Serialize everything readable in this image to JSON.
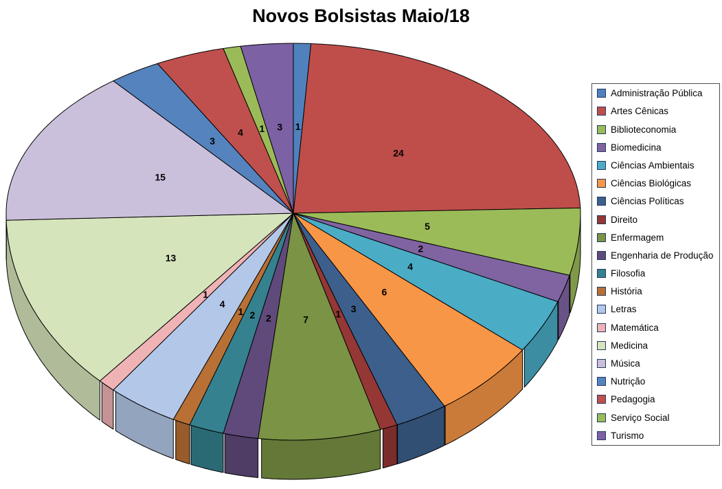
{
  "chart_data": {
    "type": "pie",
    "style": "3d-pie",
    "title": "Novos Bolsistas Maio/18",
    "legend_position": "right",
    "data_labels": "value",
    "direction": "clockwise",
    "start_angle_deg": 0,
    "total": 102,
    "categories": [
      "Administração Pública",
      "Artes Cênicas",
      "Biblioteconomia",
      "Biomedicina",
      "Ciências Ambientais",
      "Ciências Biológicas",
      "Ciências Políticas",
      "Direito",
      "Enfermagem",
      "Engenharia de Produção",
      "Filosofia",
      "História",
      "Letras",
      "Matemática",
      "Medicina",
      "Música",
      "Nutrição",
      "Pedagogia",
      "Serviço Social",
      "Turismo"
    ],
    "values": [
      1,
      24,
      5,
      2,
      4,
      6,
      3,
      1,
      7,
      2,
      2,
      1,
      4,
      1,
      13,
      15,
      3,
      4,
      1,
      3
    ],
    "colors": [
      "#4F81BD",
      "#BF4E4B",
      "#9BBB59",
      "#8064A2",
      "#4BACC6",
      "#F79646",
      "#3C5F8C",
      "#953735",
      "#7A9344",
      "#604A7B",
      "#35818F",
      "#B97034",
      "#B3C8E8",
      "#EFB3B6",
      "#D6E4BB",
      "#CBC0DC",
      "#5583BE",
      "#C0504D",
      "#9BBB59",
      "#7C61A4"
    ]
  }
}
